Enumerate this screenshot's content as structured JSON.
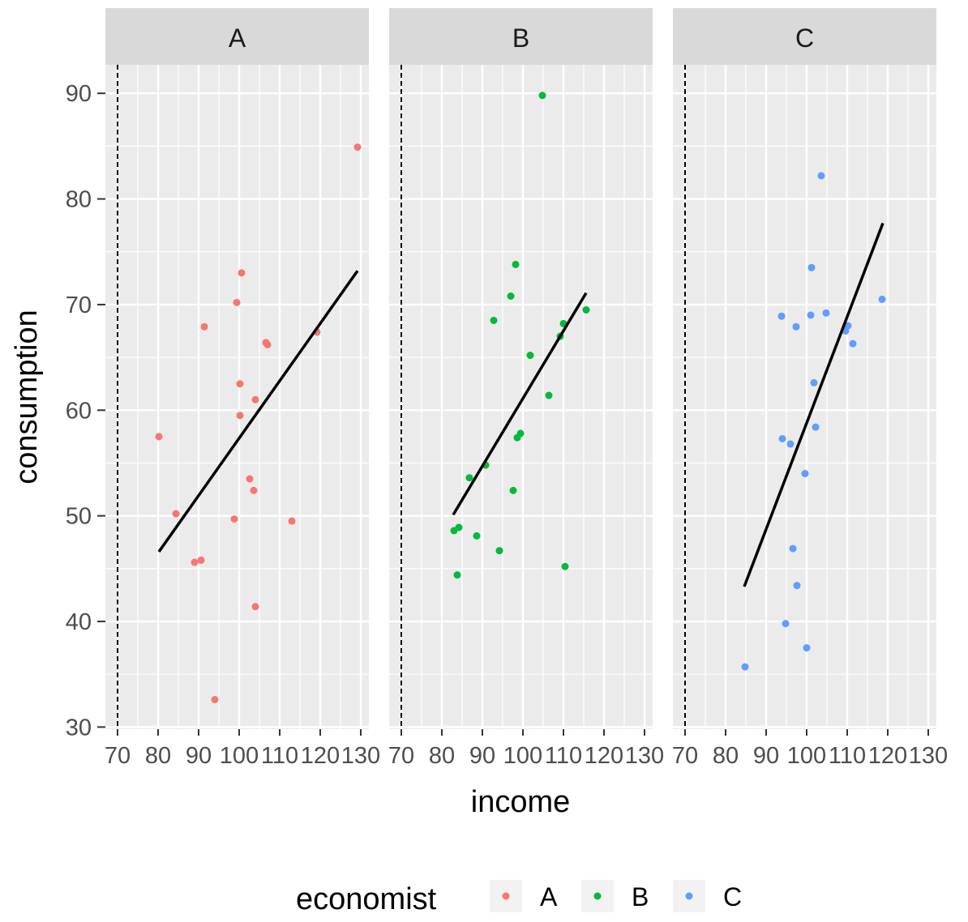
{
  "chart_data": {
    "type": "scatter",
    "facet_by": "economist",
    "xlabel": "income",
    "ylabel": "consumption",
    "xlim": [
      67,
      132
    ],
    "ylim": [
      29.8,
      92.7
    ],
    "x_ticks": [
      70,
      80,
      90,
      100,
      110,
      120,
      130
    ],
    "y_ticks": [
      30,
      40,
      50,
      60,
      70,
      80,
      90
    ],
    "x_tick_labels": [
      "70",
      "80",
      "90",
      "100",
      "110",
      "120",
      "130"
    ],
    "y_tick_labels": [
      "30",
      "40",
      "50",
      "60",
      "70",
      "80",
      "90"
    ],
    "vline_x": 70,
    "grid": true,
    "legend": {
      "title": "economist",
      "position": "bottom",
      "entries": [
        "A",
        "B",
        "C"
      ]
    },
    "panels": [
      {
        "label": "A",
        "color": "#F8766D",
        "points": [
          [
            129.2,
            84.9
          ],
          [
            100.6,
            73.0
          ],
          [
            99.4,
            70.2
          ],
          [
            91.4,
            67.9
          ],
          [
            106.6,
            66.4
          ],
          [
            107,
            66.2
          ],
          [
            119.2,
            67.4
          ],
          [
            100.2,
            62.5
          ],
          [
            104,
            61.0
          ],
          [
            100.2,
            59.5
          ],
          [
            80.2,
            57.5
          ],
          [
            102.6,
            53.5
          ],
          [
            103.6,
            52.4
          ],
          [
            84.4,
            50.2
          ],
          [
            98.8,
            49.7
          ],
          [
            113,
            49.5
          ],
          [
            89,
            45.6
          ],
          [
            90.6,
            45.8
          ],
          [
            104,
            41.4
          ],
          [
            94,
            32.6
          ]
        ],
        "fit_line": [
          [
            80.2,
            46.6
          ],
          [
            129.2,
            73.2
          ]
        ]
      },
      {
        "label": "B",
        "color": "#00BA38",
        "points": [
          [
            104.8,
            89.8
          ],
          [
            98.2,
            73.8
          ],
          [
            97,
            70.8
          ],
          [
            92.8,
            68.5
          ],
          [
            115.6,
            69.5
          ],
          [
            110,
            68.2
          ],
          [
            109.2,
            67.0
          ],
          [
            101.8,
            65.2
          ],
          [
            106.4,
            61.4
          ],
          [
            99.4,
            57.8
          ],
          [
            98.6,
            57.4
          ],
          [
            90.8,
            54.8
          ],
          [
            86.8,
            53.6
          ],
          [
            97.6,
            52.4
          ],
          [
            83,
            48.6
          ],
          [
            84.2,
            48.9
          ],
          [
            88.6,
            48.1
          ],
          [
            94.2,
            46.7
          ],
          [
            110.4,
            45.2
          ],
          [
            83.8,
            44.4
          ]
        ],
        "fit_line": [
          [
            82.8,
            50.1
          ],
          [
            115.6,
            71.1
          ]
        ]
      },
      {
        "label": "C",
        "color": "#619CFF",
        "points": [
          [
            103.6,
            82.2
          ],
          [
            101.2,
            73.5
          ],
          [
            118.6,
            70.5
          ],
          [
            93.8,
            68.9
          ],
          [
            101,
            69.0
          ],
          [
            104.8,
            69.2
          ],
          [
            97.4,
            67.9
          ],
          [
            110.2,
            68.0
          ],
          [
            109.6,
            67.5
          ],
          [
            111.4,
            66.3
          ],
          [
            101.8,
            62.6
          ],
          [
            102.2,
            58.4
          ],
          [
            94,
            57.3
          ],
          [
            96,
            56.8
          ],
          [
            99.6,
            54.0
          ],
          [
            96.6,
            46.9
          ],
          [
            97.6,
            43.4
          ],
          [
            94.8,
            39.8
          ],
          [
            100,
            37.5
          ],
          [
            84.8,
            35.7
          ]
        ],
        "fit_line": [
          [
            84.6,
            43.3
          ],
          [
            118.8,
            77.7
          ]
        ]
      }
    ]
  }
}
